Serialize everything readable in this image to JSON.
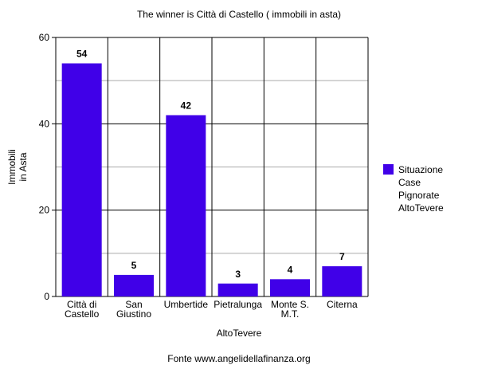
{
  "chart_data": {
    "type": "bar",
    "title": "The winner is Città di Castello ( immobili in asta)",
    "subtitle": "Fonte www.angelidellafinanza.org",
    "x_label": "AltoTevere",
    "y_label": "Immobili\nin Asta",
    "categories": [
      "Città di\nCastello",
      "San\nGiustino",
      "Umbertide",
      "Pietralunga",
      "Monte S.\nM.T.",
      "Citerna"
    ],
    "series": [
      {
        "name": "Situazione Case Pignorate AltoTevere",
        "color": "#4000e8",
        "values": [
          54,
          5,
          42,
          3,
          4,
          7
        ]
      }
    ],
    "ylim": [
      0,
      60
    ],
    "yticks": [
      0,
      20,
      40,
      60
    ],
    "y_minor_ticks": [
      10,
      30,
      50
    ],
    "grid": true,
    "legend": "right"
  }
}
